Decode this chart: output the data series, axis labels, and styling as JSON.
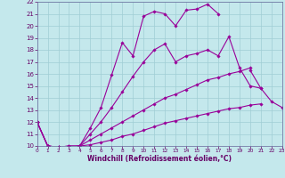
{
  "xlabel": "Windchill (Refroidissement éolien,°C)",
  "xlim": [
    0,
    23
  ],
  "ylim": [
    10,
    22
  ],
  "xticks": [
    0,
    1,
    2,
    3,
    4,
    5,
    6,
    7,
    8,
    9,
    10,
    11,
    12,
    13,
    14,
    15,
    16,
    17,
    18,
    19,
    20,
    21,
    22,
    23
  ],
  "yticks": [
    10,
    11,
    12,
    13,
    14,
    15,
    16,
    17,
    18,
    19,
    20,
    21,
    22
  ],
  "bg_color": "#c4e8ec",
  "grid_color": "#a0cdd4",
  "line_color": "#990099",
  "lines": [
    {
      "x": [
        0,
        1,
        2,
        3,
        4,
        5,
        6,
        7,
        8,
        9,
        10,
        11,
        12,
        13,
        14,
        15,
        16,
        17,
        18,
        19,
        20,
        21,
        22,
        23
      ],
      "y": [
        12,
        10,
        9.9,
        9.9,
        10,
        10.1,
        10.3,
        10.5,
        10.8,
        11.0,
        11.3,
        11.6,
        11.9,
        12.1,
        12.3,
        12.5,
        12.7,
        12.9,
        13.1,
        13.2,
        13.4,
        13.5,
        null,
        null
      ]
    },
    {
      "x": [
        0,
        1,
        2,
        3,
        4,
        5,
        6,
        7,
        8,
        9,
        10,
        11,
        12,
        13,
        14,
        15,
        16,
        17,
        18,
        19,
        20,
        21,
        22,
        23
      ],
      "y": [
        12,
        10,
        9.9,
        9.9,
        10,
        10.5,
        11.0,
        11.5,
        12.0,
        12.5,
        13.0,
        13.5,
        14.0,
        14.3,
        14.7,
        15.1,
        15.5,
        15.7,
        16.0,
        16.2,
        16.5,
        null,
        null,
        null
      ]
    },
    {
      "x": [
        0,
        1,
        2,
        3,
        4,
        5,
        6,
        7,
        8,
        9,
        10,
        11,
        12,
        13,
        14,
        15,
        16,
        17,
        18,
        19,
        20,
        21,
        22,
        23
      ],
      "y": [
        12,
        10,
        9.9,
        10.0,
        10,
        11.0,
        12.0,
        13.2,
        14.5,
        15.8,
        17.0,
        18.0,
        18.5,
        17.0,
        17.5,
        17.7,
        18.0,
        17.5,
        19.1,
        16.5,
        15.0,
        14.8,
        null,
        null
      ]
    },
    {
      "x": [
        0,
        1,
        2,
        3,
        4,
        5,
        6,
        7,
        8,
        9,
        10,
        11,
        12,
        13,
        14,
        15,
        16,
        17,
        18,
        19,
        20,
        21,
        22,
        23
      ],
      "y": [
        12,
        10,
        9.9,
        10.0,
        10,
        11.5,
        13.2,
        15.9,
        18.6,
        17.5,
        20.8,
        21.2,
        21.0,
        20.0,
        21.3,
        21.4,
        21.8,
        21.0,
        null,
        null,
        null,
        null,
        null,
        null
      ]
    },
    {
      "x": [
        20,
        21,
        22,
        23
      ],
      "y": [
        16.3,
        14.8,
        13.7,
        13.2
      ]
    }
  ]
}
